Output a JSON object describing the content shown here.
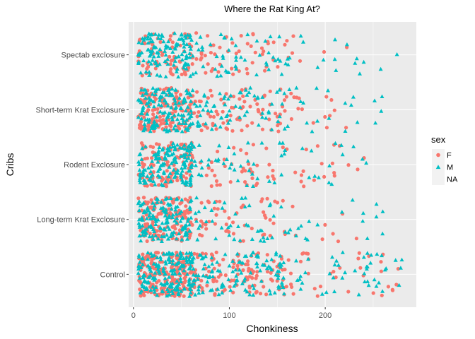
{
  "chart_data": {
    "type": "scatter",
    "title": "Where the Rat King At?",
    "xlabel": "Chonkiness",
    "ylabel": "Cribs",
    "xlim": [
      -5,
      295
    ],
    "x_ticks": [
      0,
      100,
      200
    ],
    "categories": [
      "Control",
      "Long-term Krat Exclosure",
      "Rodent Exclosure",
      "Short-term Krat Exclosure",
      "Spectab exclosure"
    ],
    "series": [
      {
        "name": "F",
        "shape": "circle",
        "color": "#f8766d"
      },
      {
        "name": "M",
        "shape": "triangle",
        "color": "#00bfc4"
      },
      {
        "name": "NA",
        "shape": "none",
        "color": "#ebebeb"
      }
    ],
    "legend_title": "sex",
    "legend_position": "right",
    "grid": true,
    "jitter": true,
    "point_groups": [
      {
        "category": "Control",
        "name": "F",
        "x_range": [
          5,
          65
        ],
        "count": 220
      },
      {
        "category": "Control",
        "name": "M",
        "x_range": [
          5,
          65
        ],
        "count": 180
      },
      {
        "category": "Control",
        "name": "F",
        "x_range": [
          65,
          160
        ],
        "count": 110
      },
      {
        "category": "Control",
        "name": "M",
        "x_range": [
          65,
          160
        ],
        "count": 110
      },
      {
        "category": "Control",
        "name": "F",
        "x_range": [
          160,
          278
        ],
        "count": 35
      },
      {
        "category": "Control",
        "name": "M",
        "x_range": [
          160,
          280
        ],
        "count": 45
      },
      {
        "category": "Long-term Krat Exclosure",
        "name": "F",
        "x_range": [
          5,
          60
        ],
        "count": 150
      },
      {
        "category": "Long-term Krat Exclosure",
        "name": "M",
        "x_range": [
          5,
          60
        ],
        "count": 140
      },
      {
        "category": "Long-term Krat Exclosure",
        "name": "F",
        "x_range": [
          60,
          160
        ],
        "count": 50
      },
      {
        "category": "Long-term Krat Exclosure",
        "name": "M",
        "x_range": [
          60,
          160
        ],
        "count": 45
      },
      {
        "category": "Long-term Krat Exclosure",
        "name": "F",
        "x_range": [
          160,
          240
        ],
        "count": 8
      },
      {
        "category": "Long-term Krat Exclosure",
        "name": "M",
        "x_range": [
          160,
          265
        ],
        "count": 18
      },
      {
        "category": "Rodent Exclosure",
        "name": "F",
        "x_range": [
          5,
          62
        ],
        "count": 110
      },
      {
        "category": "Rodent Exclosure",
        "name": "M",
        "x_range": [
          5,
          62
        ],
        "count": 150
      },
      {
        "category": "Rodent Exclosure",
        "name": "F",
        "x_range": [
          62,
          160
        ],
        "count": 40
      },
      {
        "category": "Rodent Exclosure",
        "name": "M",
        "x_range": [
          62,
          160
        ],
        "count": 40
      },
      {
        "category": "Rodent Exclosure",
        "name": "F",
        "x_range": [
          160,
          255
        ],
        "count": 18
      },
      {
        "category": "Rodent Exclosure",
        "name": "M",
        "x_range": [
          160,
          245
        ],
        "count": 14
      },
      {
        "category": "Short-term Krat Exclosure",
        "name": "F",
        "x_range": [
          5,
          62
        ],
        "count": 150
      },
      {
        "category": "Short-term Krat Exclosure",
        "name": "M",
        "x_range": [
          5,
          62
        ],
        "count": 150
      },
      {
        "category": "Short-term Krat Exclosure",
        "name": "F",
        "x_range": [
          62,
          160
        ],
        "count": 75
      },
      {
        "category": "Short-term Krat Exclosure",
        "name": "M",
        "x_range": [
          62,
          160
        ],
        "count": 65
      },
      {
        "category": "Short-term Krat Exclosure",
        "name": "F",
        "x_range": [
          160,
          230
        ],
        "count": 15
      },
      {
        "category": "Short-term Krat Exclosure",
        "name": "M",
        "x_range": [
          160,
          260
        ],
        "count": 20
      },
      {
        "category": "Spectab exclosure",
        "name": "F",
        "x_range": [
          5,
          62
        ],
        "count": 80
      },
      {
        "category": "Spectab exclosure",
        "name": "M",
        "x_range": [
          5,
          62
        ],
        "count": 120
      },
      {
        "category": "Spectab exclosure",
        "name": "F",
        "x_range": [
          62,
          165
        ],
        "count": 50
      },
      {
        "category": "Spectab exclosure",
        "name": "M",
        "x_range": [
          62,
          165
        ],
        "count": 50
      },
      {
        "category": "Spectab exclosure",
        "name": "F",
        "x_range": [
          165,
          230
        ],
        "count": 5
      },
      {
        "category": "Spectab exclosure",
        "name": "M",
        "x_range": [
          165,
          275
        ],
        "count": 14
      }
    ]
  }
}
